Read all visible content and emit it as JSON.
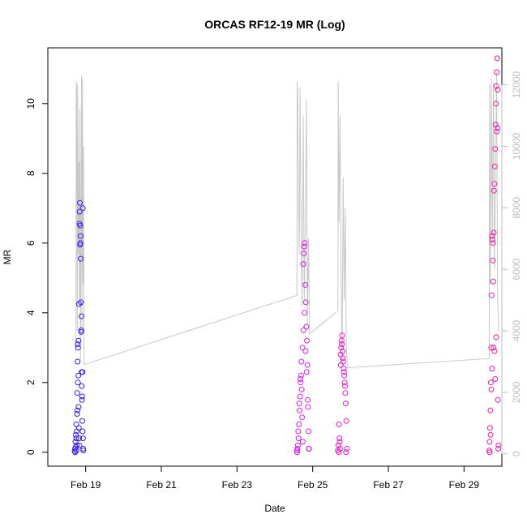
{
  "chart_data": {
    "type": "scatter",
    "title": "ORCAS RF12-19 MR (Log)",
    "xlabel": "Date",
    "ylabel": "MR",
    "x_axis": {
      "unit": "date",
      "range": [
        "2016-02-18T00:00",
        "2016-03-01T00:00"
      ],
      "tick_dates": [
        "2016-02-19",
        "2016-02-21",
        "2016-02-23",
        "2016-02-25",
        "2016-02-27",
        "2016-02-29"
      ],
      "tick_labels": [
        "Feb 19",
        "Feb 21",
        "Feb 23",
        "Feb 25",
        "Feb 27",
        "Feb 29"
      ]
    },
    "y_axis_left": {
      "range": [
        -0.4,
        11.6
      ],
      "ticks": [
        0,
        2,
        4,
        6,
        8,
        10
      ]
    },
    "y_axis_right": {
      "range": [
        -400,
        13200
      ],
      "ticks": [
        0,
        2000,
        4000,
        6000,
        8000,
        10000,
        12000
      ],
      "color": "#bdbdbd"
    },
    "grid": false,
    "legend": "none",
    "colors": {
      "altitude_line": "#c8c8c8",
      "rf12": "#3a1cf0",
      "rf13": "#4d14ef",
      "rf14": "#d91bf0",
      "rf15": "#f21aa8",
      "rf16": "#f4198a"
    },
    "altitude_trace": {
      "x": [
        "2016-02-18T17:50",
        "2016-02-18T18:00",
        "2016-02-18T18:20",
        "2016-02-18T18:40",
        "2016-02-18T19:00",
        "2016-02-18T19:20",
        "2016-02-18T19:40",
        "2016-02-18T20:00",
        "2016-02-18T20:20",
        "2016-02-18T20:40",
        "2016-02-18T21:00",
        "2016-02-18T21:20",
        "2016-02-18T21:40",
        "2016-02-18T22:00",
        "2016-02-18T22:20",
        "2016-02-18T22:40",
        "2016-02-18T23:00",
        "2016-02-24T14:00",
        "2016-02-24T14:10",
        "2016-02-24T14:30",
        "2016-02-24T15:00",
        "2016-02-24T15:30",
        "2016-02-24T16:00",
        "2016-02-24T16:40",
        "2016-02-24T17:20",
        "2016-02-24T18:00",
        "2016-02-24T18:40",
        "2016-02-24T19:20",
        "2016-02-24T20:00",
        "2016-02-24T20:40",
        "2016-02-24T21:20",
        "2016-02-24T22:00",
        "2016-02-25T16:00",
        "2016-02-25T16:10",
        "2016-02-25T16:40",
        "2016-02-25T17:20",
        "2016-02-25T18:00",
        "2016-02-25T18:40",
        "2016-02-25T19:20",
        "2016-02-25T20:00",
        "2016-02-25T20:40",
        "2016-02-25T21:20",
        "2016-02-25T22:00",
        "2016-02-29T16:00",
        "2016-02-29T16:10",
        "2016-02-29T16:40",
        "2016-02-29T17:20",
        "2016-02-29T18:00",
        "2016-02-29T18:40",
        "2016-02-29T19:20",
        "2016-02-29T20:00",
        "2016-02-29T20:40",
        "2016-02-29T21:20",
        "2016-02-29T22:00"
      ],
      "y": [
        3300,
        12100,
        11900,
        4000,
        12000,
        6500,
        9500,
        5000,
        11200,
        3000,
        7000,
        12300,
        4000,
        12200,
        5500,
        10000,
        2900,
        5150,
        12100,
        11800,
        8100,
        6500,
        11900,
        7000,
        4800,
        11000,
        5000,
        7500,
        11500,
        4200,
        7000,
        3900,
        4650,
        12100,
        7500,
        11000,
        6000,
        3000,
        9000,
        5000,
        8000,
        3500,
        2800,
        3100,
        12000,
        5500,
        12200,
        7000,
        12100,
        6000,
        9000,
        12400,
        5000,
        4000
      ]
    },
    "series": [
      {
        "name": "",
        "color": "#3a1cf0",
        "x": [
          "2016-02-18T17:00",
          "2016-02-18T17:15",
          "2016-02-18T17:30",
          "2016-02-18T17:45",
          "2016-02-18T18:00",
          "2016-02-18T18:10",
          "2016-02-18T18:20",
          "2016-02-18T18:30",
          "2016-02-18T18:40",
          "2016-02-18T18:50",
          "2016-02-18T19:00",
          "2016-02-18T19:10",
          "2016-02-18T19:20",
          "2016-02-18T19:30",
          "2016-02-18T19:40",
          "2016-02-18T19:50",
          "2016-02-18T20:00",
          "2016-02-18T20:10",
          "2016-02-18T20:20",
          "2016-02-18T20:30",
          "2016-02-18T20:40",
          "2016-02-18T20:50",
          "2016-02-18T21:00",
          "2016-02-18T21:10",
          "2016-02-18T21:20",
          "2016-02-18T21:30",
          "2016-02-18T21:40",
          "2016-02-18T21:50",
          "2016-02-18T22:00",
          "2016-02-18T22:10",
          "2016-02-18T22:20",
          "2016-02-18T22:30",
          "2016-02-18T17:20",
          "2016-02-18T17:40",
          "2016-02-18T18:05",
          "2016-02-18T18:25",
          "2016-02-18T18:45",
          "2016-02-18T19:05",
          "2016-02-18T19:25",
          "2016-02-18T19:45",
          "2016-02-18T20:05",
          "2016-02-18T20:25",
          "2016-02-18T20:45",
          "2016-02-18T21:05",
          "2016-02-18T21:25",
          "2016-02-18T21:45",
          "2016-02-18T22:05",
          "2016-02-18T22:25"
        ],
        "y": [
          0.02,
          0.1,
          0.3,
          0.5,
          0.8,
          0.05,
          0.6,
          1.1,
          1.7,
          2.6,
          3.1,
          3.0,
          2.2,
          1.3,
          0.7,
          0.4,
          0.2,
          6.9,
          7.15,
          6.5,
          6.0,
          5.55,
          4.3,
          3.5,
          3.9,
          1.9,
          1.5,
          0.9,
          2.3,
          7.0,
          0.4,
          0.05,
          0.0,
          0.15,
          0.4,
          0.2,
          1.2,
          2.0,
          3.2,
          4.25,
          6.55,
          5.95,
          6.2,
          3.45,
          2.3,
          1.6,
          0.6,
          0.1
        ]
      },
      {
        "name": "",
        "color": "#d91bf0",
        "x": [
          "2016-02-24T14:00",
          "2016-02-24T14:20",
          "2016-02-24T14:40",
          "2016-02-24T15:00",
          "2016-02-24T15:20",
          "2016-02-24T15:40",
          "2016-02-24T16:00",
          "2016-02-24T16:20",
          "2016-02-24T16:40",
          "2016-02-24T17:00",
          "2016-02-24T17:20",
          "2016-02-24T17:40",
          "2016-02-24T18:00",
          "2016-02-24T18:20",
          "2016-02-24T18:40",
          "2016-02-24T19:00",
          "2016-02-24T19:20",
          "2016-02-24T19:40",
          "2016-02-24T20:00",
          "2016-02-24T20:20",
          "2016-02-24T20:40",
          "2016-02-24T21:00",
          "2016-02-24T21:20",
          "2016-02-24T21:40",
          "2016-02-24T14:10",
          "2016-02-24T14:50",
          "2016-02-24T15:30",
          "2016-02-24T16:10",
          "2016-02-24T16:50",
          "2016-02-24T17:30",
          "2016-02-24T18:10",
          "2016-02-24T18:50",
          "2016-02-24T19:30",
          "2016-02-24T20:10",
          "2016-02-24T20:50",
          "2016-02-24T21:30"
        ],
        "y": [
          0.05,
          0.1,
          0.2,
          0.4,
          0.8,
          1.2,
          1.6,
          2.0,
          2.2,
          1.8,
          1.0,
          0.3,
          5.4,
          5.7,
          5.9,
          6.0,
          4.8,
          4.3,
          3.6,
          3.2,
          2.5,
          1.3,
          0.6,
          0.1,
          0.0,
          0.6,
          1.4,
          2.1,
          2.6,
          3.0,
          3.5,
          4.0,
          2.9,
          2.3,
          1.5,
          0.1
        ]
      },
      {
        "name": "",
        "color": "#ea1acc",
        "x": [
          "2016-02-25T16:00",
          "2016-02-25T16:20",
          "2016-02-25T16:40",
          "2016-02-25T17:00",
          "2016-02-25T17:20",
          "2016-02-25T17:40",
          "2016-02-25T18:00",
          "2016-02-25T18:20",
          "2016-02-25T18:40",
          "2016-02-25T19:00",
          "2016-02-25T19:20",
          "2016-02-25T19:40",
          "2016-02-25T20:00",
          "2016-02-25T20:20",
          "2016-02-25T20:40",
          "2016-02-25T21:00",
          "2016-02-25T21:20",
          "2016-02-25T21:40",
          "2016-02-25T16:30",
          "2016-02-25T17:10",
          "2016-02-25T17:50",
          "2016-02-25T18:30",
          "2016-02-25T19:10",
          "2016-02-25T19:50",
          "2016-02-25T20:30",
          "2016-02-25T21:10"
        ],
        "y": [
          0.05,
          0.2,
          0.8,
          0.4,
          0.1,
          2.8,
          3.0,
          3.2,
          3.35,
          2.9,
          2.6,
          2.4,
          2.2,
          2.0,
          1.7,
          1.4,
          0.9,
          0.1,
          0.0,
          0.3,
          2.5,
          3.1,
          2.7,
          2.3,
          1.9,
          0.0
        ]
      },
      {
        "name": "",
        "color": "#f21aa8",
        "x": [
          "2016-02-29T16:00",
          "2016-02-29T16:15",
          "2016-02-29T16:30",
          "2016-02-29T16:45",
          "2016-02-29T17:00",
          "2016-02-29T17:15",
          "2016-02-29T17:30",
          "2016-02-29T17:45",
          "2016-02-29T18:00",
          "2016-02-29T18:15",
          "2016-02-29T18:30",
          "2016-02-29T18:45",
          "2016-02-29T19:00",
          "2016-02-29T19:15",
          "2016-02-29T19:30",
          "2016-02-29T19:45",
          "2016-02-29T20:00",
          "2016-02-29T20:15",
          "2016-02-29T20:30",
          "2016-02-29T20:45",
          "2016-02-29T21:00",
          "2016-02-29T21:15",
          "2016-02-29T21:30",
          "2016-02-29T21:45",
          "2016-02-29T16:20",
          "2016-02-29T16:50",
          "2016-02-29T17:20",
          "2016-02-29T17:50",
          "2016-02-29T18:20",
          "2016-02-29T18:50",
          "2016-02-29T19:20",
          "2016-02-29T19:50",
          "2016-02-29T20:20",
          "2016-02-29T20:50",
          "2016-02-29T21:20",
          "2016-02-29T21:50"
        ],
        "y": [
          0.05,
          0.3,
          0.7,
          1.2,
          2.0,
          3.0,
          4.5,
          6.2,
          6.1,
          5.5,
          4.9,
          3.0,
          7.5,
          7.7,
          8.2,
          8.7,
          9.4,
          10.0,
          10.5,
          10.9,
          11.3,
          9.3,
          1.5,
          0.1,
          0.0,
          0.5,
          1.8,
          2.4,
          6.0,
          6.3,
          2.9,
          2.1,
          3.3,
          9.2,
          10.4,
          0.2
        ]
      }
    ]
  }
}
